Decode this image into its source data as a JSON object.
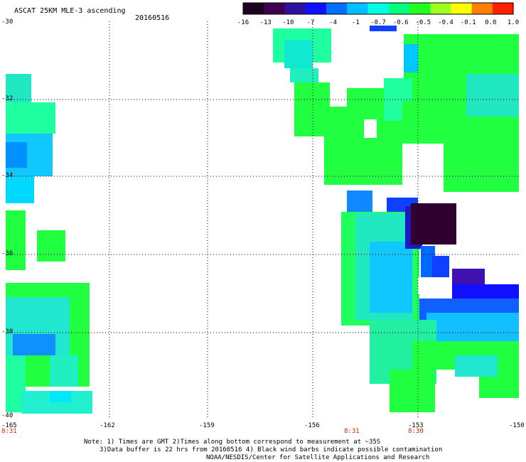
{
  "header": {
    "title": "ASCAT 25KM MLE-3 ascending",
    "date": "20160516"
  },
  "colorbar": {
    "tick_labels": [
      "-16",
      "-13",
      "-10",
      "-7",
      "-4",
      "-1",
      "-0.7",
      "-0.6",
      "-0.5",
      "-0.4",
      "-0.1",
      "0.0",
      "1.0"
    ],
    "colors": [
      "#200020",
      "#400050",
      "#3010a0",
      "#1010ff",
      "#0070ff",
      "#00c0ff",
      "#00ffe0",
      "#00ff80",
      "#20ff20",
      "#a0ff20",
      "#ffff00",
      "#ff8000",
      "#ff2000"
    ],
    "marker_color": "#1040ff"
  },
  "axes": {
    "y_labels": [
      "-30",
      "-32",
      "-34",
      "-36",
      "-38",
      "-40"
    ],
    "x_labels": [
      "-165",
      "-162",
      "-159",
      "-156",
      "-153",
      "-150"
    ]
  },
  "time_labels": [
    "8:31",
    "8:31",
    "8:30"
  ],
  "notes": {
    "line1": "Note: 1) Times are GMT 2)Times along bottom correspond to measurement at ~35S",
    "line2": "3)Data buffer is 22 hrs from 20160516 4) Black wind barbs indicate possible contamination",
    "line3": "NOAA/NESDIS/Center for Satellite Applications and Research"
  }
}
